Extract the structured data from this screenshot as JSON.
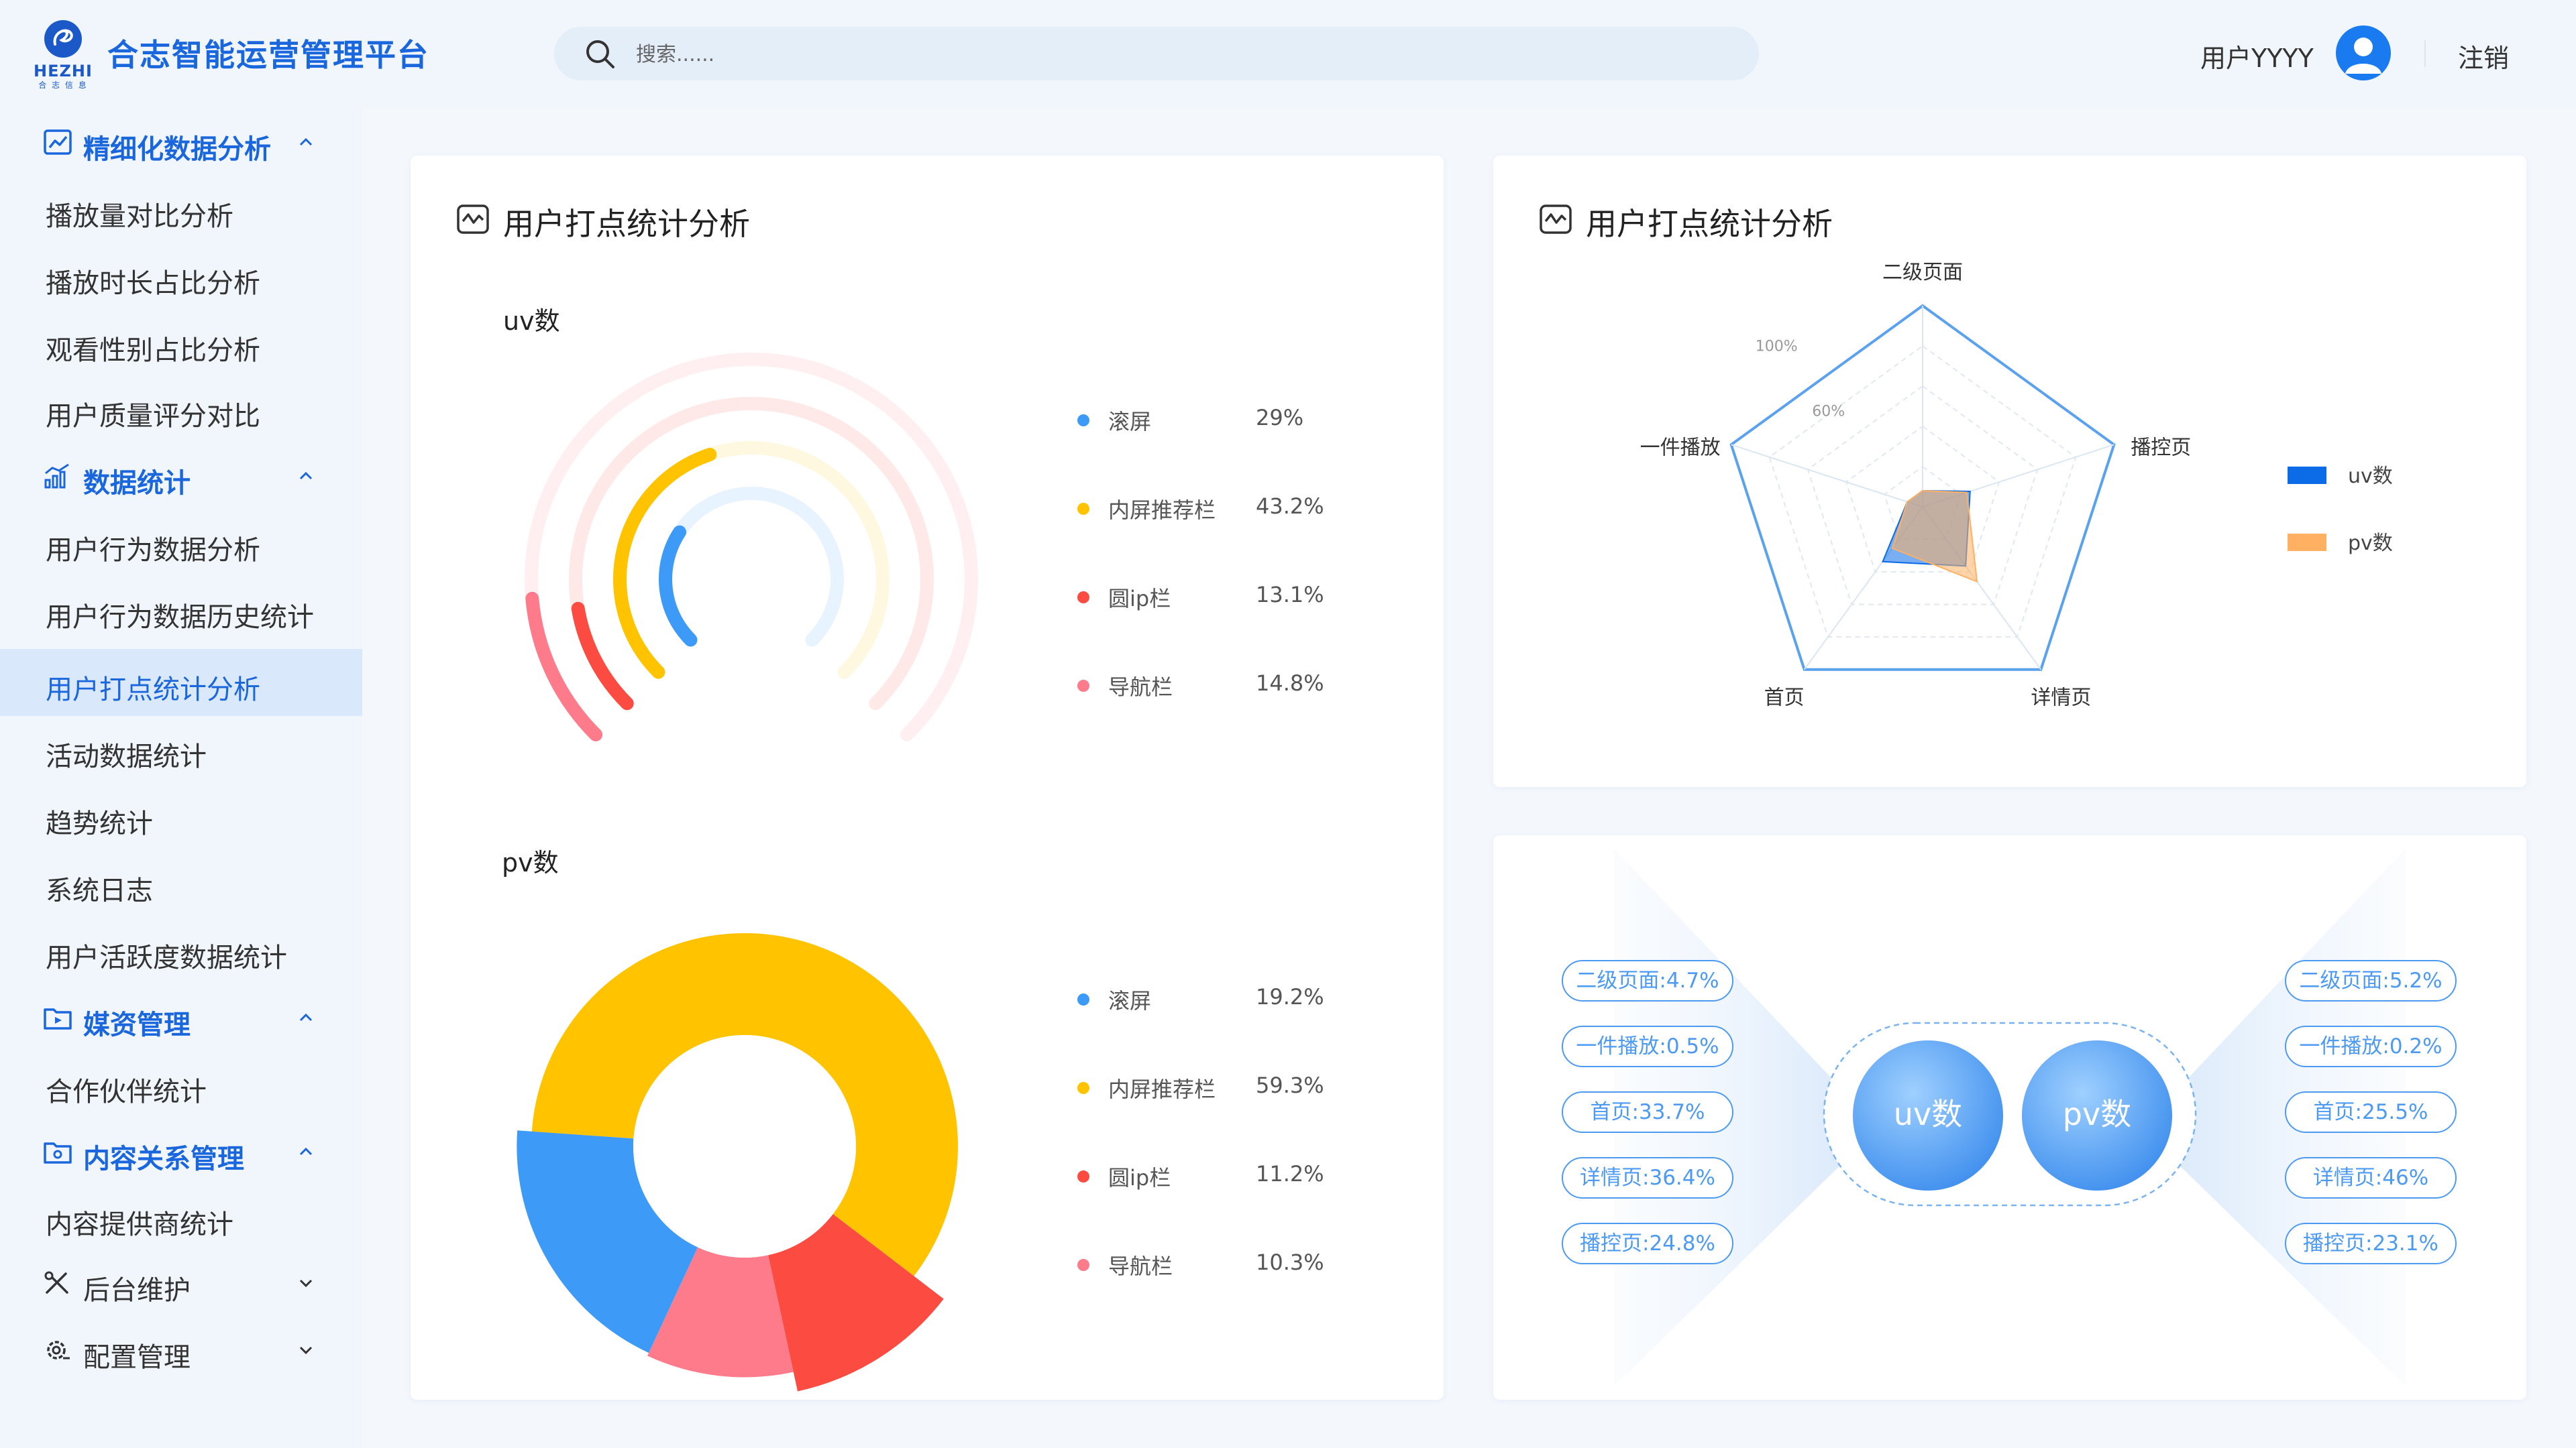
{
  "header": {
    "brand": "HEZHI",
    "brand_sub": "合 志 信 息",
    "title": "合志智能运营管理平台",
    "search_placeholder": "搜索......",
    "user_name": "用户YYYY",
    "logout": "注销"
  },
  "sidebar": {
    "groups": [
      {
        "label": "精细化数据分析",
        "icon": "trend-chart-icon",
        "expanded": true,
        "items": [
          "播放量对比分析",
          "播放时长占比分析",
          "观看性别占比分析",
          "用户质量评分对比"
        ]
      },
      {
        "label": "数据统计",
        "icon": "bar-stats-icon",
        "expanded": true,
        "items": [
          "用户行为数据分析",
          "用户行为数据历史统计",
          "用户打点统计分析",
          "活动数据统计",
          "趋势统计",
          "系统日志",
          "用户活跃度数据统计"
        ]
      },
      {
        "label": "媒资管理",
        "icon": "folder-icon",
        "expanded": true,
        "items": [
          "合作伙伴统计"
        ]
      },
      {
        "label": "内容关系管理",
        "icon": "content-relation-icon",
        "expanded": true,
        "items": [
          "内容提供商统计"
        ]
      },
      {
        "label": "后台维护",
        "icon": "tools-icon",
        "expanded": false,
        "items": []
      },
      {
        "label": "配置管理",
        "icon": "config-gear-icon",
        "expanded": false,
        "items": []
      }
    ],
    "active_item": "用户打点统计分析"
  },
  "colors": {
    "primary": "#1a66dc",
    "blue": "#3d9bf7",
    "yellow": "#ffc300",
    "red": "#fc4c41",
    "pink": "#fe7b8c",
    "orange": "#ffb061",
    "radar_line": "#5aa2ee"
  },
  "left_card": {
    "title": "用户打点统计分析",
    "uv_label": "uv数",
    "pv_label": "pv数"
  },
  "right_card": {
    "title": "用户打点统计分析"
  },
  "chart_data": [
    {
      "type": "radial_bar",
      "title": "uv数",
      "categories": [
        "滚屏",
        "内屏推荐栏",
        "圆ip栏",
        "导航栏"
      ],
      "values_label": [
        "29%",
        "43.2%",
        "13.1%",
        "14.8%"
      ],
      "values": [
        29,
        43.2,
        13.1,
        14.8
      ],
      "colors": [
        "#3d9bf7",
        "#ffc300",
        "#fc4c41",
        "#fe7b8c"
      ]
    },
    {
      "type": "pie",
      "title": "pv数",
      "categories": [
        "滚屏",
        "内屏推荐栏",
        "圆ip栏",
        "导航栏"
      ],
      "values_label": [
        "19.2%",
        "59.3%",
        "11.2%",
        "10.3%"
      ],
      "values": [
        19.2,
        59.3,
        11.2,
        10.3
      ],
      "colors": [
        "#3d9bf7",
        "#ffc300",
        "#fc4c41",
        "#fe7b8c"
      ]
    },
    {
      "type": "radar",
      "indicators": [
        "二级页面",
        "播控页",
        "详情页",
        "首页",
        "一件播放"
      ],
      "ticks": [
        "100%",
        "60%"
      ],
      "series": [
        {
          "name": "uv数",
          "color": "#0c6ce8",
          "values": [
            0.047,
            0.248,
            0.364,
            0.337,
            0.005
          ]
        },
        {
          "name": "pv数",
          "color": "#ffb061",
          "values": [
            0.052,
            0.231,
            0.46,
            0.255,
            0.002
          ]
        }
      ],
      "legend_position": "right"
    },
    {
      "type": "table",
      "center_labels": [
        "uv数",
        "pv数"
      ],
      "uv_items": [
        "二级页面:4.7%",
        "一件播放:0.5%",
        "首页:33.7%",
        "详情页:36.4%",
        "播控页:24.8%"
      ],
      "pv_items": [
        "二级页面:5.2%",
        "一件播放:0.2%",
        "首页:25.5%",
        "详情页:46%",
        "播控页:23.1%"
      ]
    }
  ]
}
